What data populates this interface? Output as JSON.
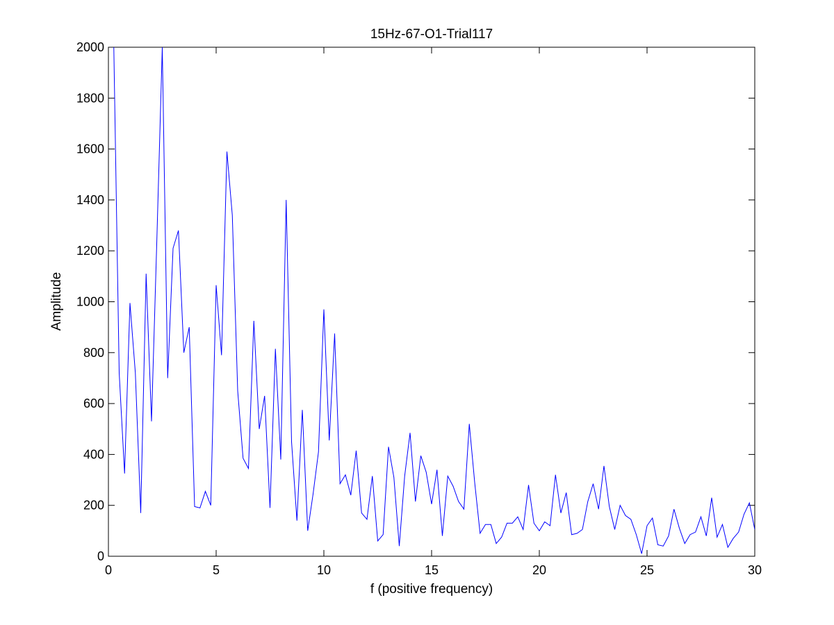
{
  "chart_data": {
    "type": "line",
    "title": "15Hz-67-O1-Trial117",
    "xlabel": "f (positive frequency)",
    "ylabel": "Amplitude",
    "xlim": [
      0,
      30
    ],
    "ylim": [
      0,
      2000
    ],
    "xticks": [
      0,
      5,
      10,
      15,
      20,
      25,
      30
    ],
    "yticks": [
      0,
      200,
      400,
      600,
      800,
      1000,
      1200,
      1400,
      1600,
      1800,
      2000
    ],
    "grid": false,
    "line_color": "#0000ff",
    "series": [
      {
        "x": [
          0.25,
          0.5,
          0.75,
          1.0,
          1.25,
          1.5,
          1.75,
          2.0,
          2.25,
          2.5,
          2.75,
          3.0,
          3.25,
          3.5,
          3.75,
          4.0,
          4.25,
          4.5,
          4.75,
          5.0,
          5.25,
          5.5,
          5.75,
          6.0,
          6.25,
          6.5,
          6.75,
          7.0,
          7.25,
          7.5,
          7.75,
          8.0,
          8.25,
          8.5,
          8.75,
          9.0,
          9.25,
          9.5,
          9.75,
          10.0,
          10.25,
          10.5,
          10.75,
          11.0,
          11.25,
          11.5,
          11.75,
          12.0,
          12.25,
          12.5,
          12.75,
          13.0,
          13.25,
          13.5,
          13.75,
          14.0,
          14.25,
          14.5,
          14.75,
          15.0,
          15.25,
          15.5,
          15.75,
          16.0,
          16.25,
          16.5,
          16.75,
          17.0,
          17.25,
          17.5,
          17.75,
          18.0,
          18.25,
          18.5,
          18.75,
          19.0,
          19.25,
          19.5,
          19.75,
          20.0,
          20.25,
          20.5,
          20.75,
          21.0,
          21.25,
          21.5,
          21.75,
          22.0,
          22.25,
          22.5,
          22.75,
          23.0,
          23.25,
          23.5,
          23.75,
          24.0,
          24.25,
          24.5,
          24.75,
          25.0,
          25.25,
          25.5,
          25.75,
          26.0,
          26.25,
          26.5,
          26.75,
          27.0,
          27.25,
          27.5,
          27.75,
          28.0,
          28.25,
          28.5,
          28.75,
          29.0,
          29.25,
          29.5,
          29.75,
          30.0
        ],
        "values": [
          2000,
          720,
          325,
          995,
          720,
          170,
          1110,
          530,
          1250,
          2000,
          700,
          1210,
          1280,
          800,
          900,
          195,
          190,
          255,
          200,
          1065,
          790,
          1590,
          1340,
          650,
          385,
          345,
          925,
          500,
          630,
          190,
          815,
          380,
          1400,
          450,
          140,
          575,
          100,
          245,
          410,
          970,
          455,
          875,
          285,
          320,
          240,
          415,
          170,
          145,
          315,
          60,
          85,
          430,
          310,
          40,
          315,
          485,
          215,
          395,
          330,
          205,
          340,
          80,
          315,
          275,
          215,
          185,
          520,
          290,
          90,
          125,
          125,
          50,
          75,
          130,
          130,
          155,
          105,
          280,
          130,
          100,
          135,
          120,
          320,
          170,
          250,
          85,
          90,
          105,
          215,
          285,
          185,
          355,
          195,
          105,
          200,
          160,
          145,
          85,
          10,
          120,
          150,
          45,
          40,
          80,
          185,
          110,
          50,
          85,
          95,
          155,
          80,
          230,
          75,
          125,
          35,
          70,
          95,
          165,
          210,
          105
        ]
      }
    ]
  }
}
